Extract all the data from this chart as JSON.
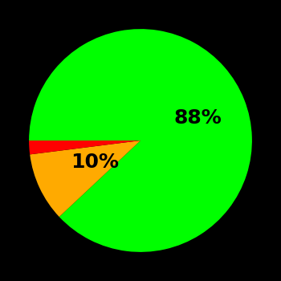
{
  "slices": [
    88,
    10,
    2
  ],
  "colors": [
    "#00ff00",
    "#ffaa00",
    "#ff0000"
  ],
  "labels": [
    "88%",
    "10%",
    ""
  ],
  "background_color": "#000000",
  "label_fontsize": 18,
  "label_color": "#000000",
  "startangle": 180,
  "counterclock": false,
  "label_offsets": [
    0.55,
    0.45,
    0
  ],
  "label_angles_override": [
    20,
    210,
    0
  ]
}
